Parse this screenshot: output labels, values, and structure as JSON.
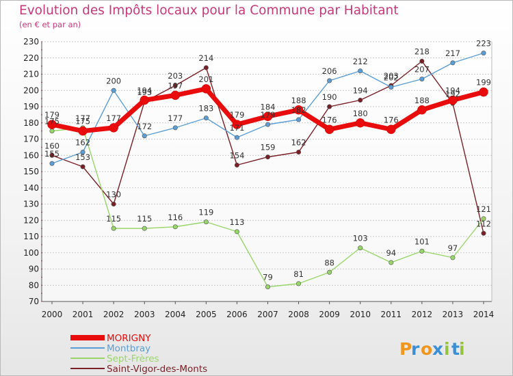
{
  "header": {
    "title": "Evolution des Impôts locaux pour la Commune par Habitant",
    "subtitle": "(en € et par an)"
  },
  "brand": {
    "letters": [
      "P",
      "r",
      "o",
      "x",
      "i",
      "t",
      "i"
    ],
    "colors": [
      "#f0961e",
      "#3a8fd6",
      "#f0961e",
      "#3a8fd6",
      "#94c43c",
      "#3a8fd6",
      "#94c43c"
    ]
  },
  "chart_data": {
    "type": "line",
    "title": "Evolution des Impôts locaux pour la Commune par Habitant",
    "subtitle": "(en € et par an)",
    "x": [
      "2000",
      "2001",
      "2002",
      "2003",
      "2004",
      "2005",
      "2006",
      "2007",
      "2008",
      "2009",
      "2010",
      "2011",
      "2012",
      "2013",
      "2014"
    ],
    "ylim": [
      70,
      230
    ],
    "yticks": [
      70,
      80,
      90,
      100,
      110,
      120,
      130,
      140,
      150,
      160,
      170,
      180,
      190,
      200,
      210,
      220,
      230
    ],
    "grid": "horizontal",
    "legend_position": "bottom-left",
    "series": [
      {
        "name": "MORIGNY",
        "color": "#e80c0c",
        "values": [
          179,
          175,
          177,
          194,
          197,
          201,
          179,
          184,
          188,
          176,
          180,
          176,
          188,
          194,
          199
        ]
      },
      {
        "name": "Montbray",
        "color": "#5b9ed6",
        "values": [
          155,
          162,
          200,
          172,
          177,
          183,
          171,
          179,
          182,
          206,
          212,
          202,
          207,
          217,
          223
        ]
      },
      {
        "name": "Sept-Frères",
        "color": "#99d66a",
        "values": [
          175,
          177,
          115,
          115,
          116,
          119,
          113,
          79,
          81,
          88,
          103,
          94,
          101,
          97,
          121
        ]
      },
      {
        "name": "Saint-Vigor-des-Monts",
        "color": "#7a1f25",
        "values": [
          160,
          153,
          130,
          193,
          203,
          214,
          154,
          159,
          162,
          190,
          194,
          203,
          218,
          192,
          112
        ]
      }
    ]
  }
}
